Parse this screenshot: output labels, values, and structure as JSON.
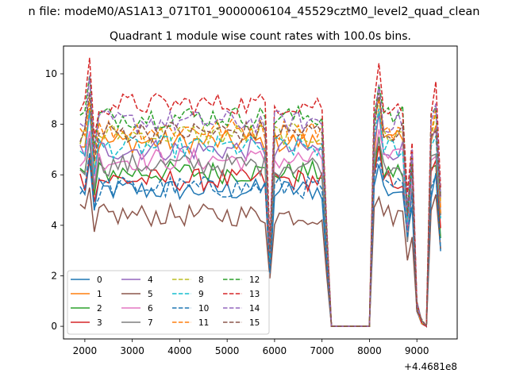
{
  "figure": {
    "suptitle": "n file: modeM0/AS1A13_071T01_9000006104_45529cztM0_level2_quad_clean",
    "offset_label": "+4.4681e8"
  },
  "chart_data": {
    "type": "line",
    "title": "Quadrant 1 module wise count rates with 100.0s bins.",
    "xlabel": "",
    "ylabel": "",
    "xlim": [
      1550,
      9850
    ],
    "ylim": [
      -0.5,
      11.1
    ],
    "x_ticks": [
      2000,
      3000,
      4000,
      5000,
      6000,
      7000,
      8000,
      9000
    ],
    "y_ticks": [
      0,
      2,
      4,
      6,
      8,
      10
    ],
    "grid": false,
    "legend": {
      "position": "lower-left",
      "columns": 4
    },
    "x": [
      1900,
      2000,
      2100,
      2200,
      2300,
      2400,
      2500,
      2600,
      2700,
      2800,
      2900,
      3000,
      3100,
      3200,
      3300,
      3400,
      3500,
      3600,
      3700,
      3800,
      3900,
      4000,
      4100,
      4200,
      4300,
      4400,
      4500,
      4600,
      4700,
      4800,
      4900,
      5000,
      5100,
      5200,
      5300,
      5400,
      5500,
      5600,
      5700,
      5800,
      5900,
      6000,
      6100,
      6200,
      6300,
      6400,
      6500,
      6600,
      6700,
      6800,
      6900,
      7000,
      7100,
      7200,
      7300,
      7400,
      7500,
      7600,
      7700,
      7800,
      7900,
      8000,
      8100,
      8200,
      8300,
      8400,
      8500,
      8600,
      8700,
      8800,
      8900,
      9000,
      9100,
      9200,
      9300,
      9400,
      9500
    ],
    "active_ranges": [
      [
        1900,
        5800
      ],
      [
        5900,
        7100
      ],
      [
        8100,
        9500
      ]
    ],
    "gap_point_range": [
      7200,
      8000
    ],
    "series": [
      {
        "name": "0",
        "color": "#1f77b4",
        "dash": "solid",
        "base": 5.4,
        "dip": 2.0
      },
      {
        "name": "1",
        "color": "#ff7f0e",
        "dash": "solid",
        "base": 7.3,
        "dip": 2.8
      },
      {
        "name": "2",
        "color": "#2ca02c",
        "dash": "solid",
        "base": 6.1,
        "dip": 2.4
      },
      {
        "name": "3",
        "color": "#d62728",
        "dash": "solid",
        "base": 5.8,
        "dip": 2.2
      },
      {
        "name": "4",
        "color": "#9467bd",
        "dash": "solid",
        "base": 7.0,
        "dip": 2.6
      },
      {
        "name": "5",
        "color": "#8c564b",
        "dash": "solid",
        "base": 4.4,
        "dip": 1.9
      },
      {
        "name": "6",
        "color": "#e377c2",
        "dash": "solid",
        "base": 6.6,
        "dip": 2.5
      },
      {
        "name": "7",
        "color": "#7f7f7f",
        "dash": "solid",
        "base": 6.4,
        "dip": 2.4
      },
      {
        "name": "8",
        "color": "#bcbd22",
        "dash": "dashed",
        "base": 7.6,
        "dip": 2.9
      },
      {
        "name": "9",
        "color": "#17becf",
        "dash": "dashed",
        "base": 7.1,
        "dip": 2.7
      },
      {
        "name": "10",
        "color": "#1f77b4",
        "dash": "dashed",
        "base": 5.5,
        "dip": 2.1
      },
      {
        "name": "11",
        "color": "#ff7f0e",
        "dash": "dashed",
        "base": 7.8,
        "dip": 3.0
      },
      {
        "name": "12",
        "color": "#2ca02c",
        "dash": "dashed",
        "base": 8.3,
        "dip": 3.1
      },
      {
        "name": "13",
        "color": "#d62728",
        "dash": "dashed",
        "base": 8.8,
        "dip": 3.3
      },
      {
        "name": "14",
        "color": "#9467bd",
        "dash": "dashed",
        "base": 8.1,
        "dip": 3.0
      },
      {
        "name": "15",
        "color": "#8c564b",
        "dash": "dashed",
        "base": 7.7,
        "dip": 2.9
      }
    ]
  }
}
